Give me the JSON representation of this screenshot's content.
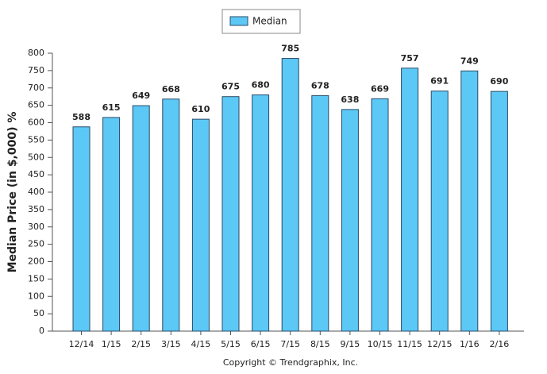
{
  "chart_data": {
    "type": "bar",
    "y_axis_label": "Median Price (in $,000) %",
    "footer": "Copyright © Trendgraphix, Inc.",
    "categories": [
      "12/14",
      "1/15",
      "2/15",
      "3/15",
      "4/15",
      "5/15",
      "6/15",
      "7/15",
      "8/15",
      "9/15",
      "10/15",
      "11/15",
      "12/15",
      "1/16",
      "2/16"
    ],
    "series": [
      {
        "name": "Median",
        "color": "#5cc8f6",
        "values": [
          588,
          615,
          649,
          668,
          610,
          675,
          680,
          785,
          678,
          638,
          669,
          757,
          691,
          749,
          690
        ]
      }
    ],
    "ylim": [
      0,
      800
    ],
    "yticks": [
      0,
      50,
      100,
      150,
      200,
      250,
      300,
      350,
      400,
      450,
      500,
      550,
      600,
      650,
      700,
      750,
      800
    ],
    "grid": false,
    "legend": "top"
  }
}
